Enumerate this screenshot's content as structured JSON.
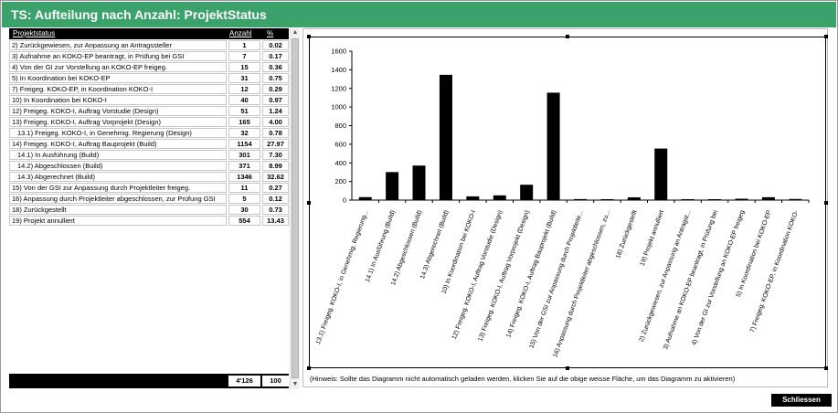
{
  "window": {
    "title": "TS: Aufteilung nach Anzahl: ProjektStatus"
  },
  "table": {
    "headers": {
      "name": "Projektstatus",
      "count": "Anzahl",
      "pct": "%"
    },
    "rows": [
      {
        "name": "2) Zurückgewiesen, zur Anpassung an Antragssteller",
        "count": "1",
        "pct": "0.02",
        "indent": false
      },
      {
        "name": "3) Aufnahme an KOKO-EP beantragt, in Prüfung bei GSI",
        "count": "7",
        "pct": "0.17",
        "indent": false
      },
      {
        "name": "4) Von der GI zur Vorstellung an KOKO-EP freigeg.",
        "count": "15",
        "pct": "0.36",
        "indent": false
      },
      {
        "name": "5) In Koordination bei KOKO-EP",
        "count": "31",
        "pct": "0.75",
        "indent": false
      },
      {
        "name": "7) Freigeg. KOKO-EP, in Koordination KOKO-I",
        "count": "12",
        "pct": "0.29",
        "indent": false
      },
      {
        "name": "10) In Koordination bei KOKO-I",
        "count": "40",
        "pct": "0.97",
        "indent": false
      },
      {
        "name": "12) Freigeg. KOKO-I, Auftrag Vorstudie (Design)",
        "count": "51",
        "pct": "1.24",
        "indent": false
      },
      {
        "name": "13) Freigeg. KOKO-I, Auftrag Vorprojekt (Design)",
        "count": "165",
        "pct": "4.00",
        "indent": false
      },
      {
        "name": "13.1) Freigeg. KOKO-I, in Genehmig. Regierung (Design)",
        "count": "32",
        "pct": "0.78",
        "indent": true
      },
      {
        "name": "14) Freigeg. KOKO-I, Auftrag Bauprojekt (Build)",
        "count": "1154",
        "pct": "27.97",
        "indent": false
      },
      {
        "name": "14.1) In Ausführung (Build)",
        "count": "301",
        "pct": "7.30",
        "indent": true
      },
      {
        "name": "14.2) Abgeschlossen (Build)",
        "count": "371",
        "pct": "8.99",
        "indent": true
      },
      {
        "name": "14.3) Abgerechnet (Build)",
        "count": "1346",
        "pct": "32.62",
        "indent": true
      },
      {
        "name": "15) Von der GSI zur Anpassung durch Projektleiter freigeg.",
        "count": "11",
        "pct": "0.27",
        "indent": false
      },
      {
        "name": "16) Anpassung durch Projektleiter abgeschlossen, zur Prüfung GSI",
        "count": "5",
        "pct": "0.12",
        "indent": false
      },
      {
        "name": "18) Zurückgestellt",
        "count": "30",
        "pct": "0.73",
        "indent": false
      },
      {
        "name": "19) Projekt annulliert",
        "count": "554",
        "pct": "13.43",
        "indent": false
      }
    ],
    "totals": {
      "count": "4'126",
      "pct": "100"
    }
  },
  "scrollbar": {
    "up_icon": "▲",
    "down_icon": "▼"
  },
  "chart_data": {
    "type": "bar",
    "title": "",
    "xlabel": "",
    "ylabel": "",
    "ylim": [
      0,
      1600
    ],
    "yticks": [
      0,
      200,
      400,
      600,
      800,
      1000,
      1200,
      1400,
      1600
    ],
    "categories": [
      "13.1) Freigeg. KOKO-I, in Genehmig. Regierung...",
      "14.1) In Ausführung (Build)",
      "14.2) Abgeschlossen (Build)",
      "14.3) Abgerechnet (Build)",
      "10) In Koordination bei KOKO-I",
      "12) Freigeg. KOKO-I, Auftrag Vorstudie (Design)",
      "13) Freigeg. KOKO-I, Auftrag Vorprojekt (Design)",
      "14) Freigeg. KOKO-I, Auftrag Bauprojekt (Build)",
      "15) Von der GSI zur Anpassung durch Projektleite...",
      "16) Anpassung durch Projektleiter abgeschlossen, zu...",
      "18) Zurückgestellt",
      "19) Projekt annulliert",
      "2) Zurückgewiesen, zur Anpassung an Antragst...",
      "3) Aufnahme an KOKO-EP beantragt, in Prüfung bei",
      "4) Von der GI zur Vorstellung an KOKO-EP freigeg",
      "5) In Koordination bei KOKO-EP",
      "7) Freigeg. KOKO-EP, in Koordination KOKO-"
    ],
    "values": [
      32,
      301,
      371,
      1346,
      40,
      51,
      165,
      1154,
      11,
      5,
      30,
      554,
      1,
      7,
      15,
      31,
      12
    ],
    "grid": false,
    "bar_color": "#000000"
  },
  "hint": "(Hinweis: Sollte das Diagramm nicht automatisch geladen werden, klicken Sie auf die obige weisse Fläche, um das Diagramm zu aktivieren)",
  "buttons": {
    "close_label": "Schliessen"
  }
}
